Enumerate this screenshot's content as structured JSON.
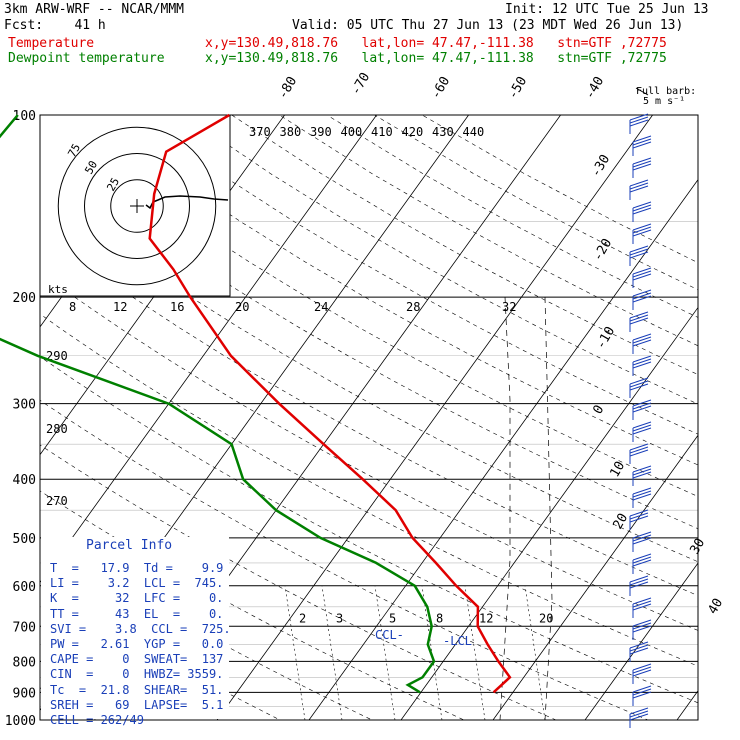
{
  "header": {
    "line1_left": "3km ARW-WRF -- NCAR/MMM",
    "line1_right": "Init: 12 UTC Tue 25 Jun 13",
    "line2_left": "Fcst:    41 h",
    "line2_right": "Valid: 05 UTC Thu 27 Jun 13 (23 MDT Wed 26 Jun 13)",
    "temp_label": "Temperature",
    "temp_info": "x,y=130.49,818.76   lat,lon= 47.47,-111.38   stn=GTF ,72775",
    "dew_label": "Dewpoint temperature",
    "dew_info": "x,y=130.49,818.76   lat,lon= 47.47,-111.38   stn=GTF ,72775"
  },
  "colors": {
    "temperature": "#e00000",
    "dewpoint": "#008000",
    "parcel": "#1a3fb8",
    "wind": "#1a3fb8"
  },
  "chart_data": {
    "type": "line",
    "title": "",
    "y_axis": {
      "label": "",
      "scale": "log",
      "ticks": [
        100,
        200,
        300,
        400,
        500,
        600,
        700,
        800,
        900,
        1000
      ],
      "range": [
        100,
        1000
      ]
    },
    "isotherm_labels": [
      "-80",
      "-70",
      "-60",
      "-50",
      "-40",
      "-30",
      "-20",
      "-10",
      "0",
      "10",
      "20",
      "30",
      "40"
    ],
    "theta_e_labels": [
      "370",
      "380",
      "390",
      "400",
      "410",
      "420",
      "430",
      "440"
    ],
    "theta_labels": [
      "290",
      "280",
      "270"
    ],
    "mixing_ratio_labels": [
      "2",
      "3",
      "5",
      "8",
      "12",
      "20"
    ],
    "hodograph": {
      "unit_label": "kts",
      "ring_labels": [
        "75",
        "50",
        "25"
      ]
    },
    "speed_scale_labels": [
      "8",
      "12",
      "16",
      "20",
      "24",
      "28",
      "32"
    ],
    "wind_key": {
      "line1": "Full barb:",
      "line2": "5 m s⁻¹"
    },
    "level_markers": {
      "ccl": "CCL",
      "lcl": "LCL"
    },
    "series": [
      {
        "name": "Temperature",
        "color": "#e00000",
        "points": [
          [
            100,
            -56
          ],
          [
            115,
            -60
          ],
          [
            135,
            -58
          ],
          [
            160,
            -55
          ],
          [
            180,
            -50
          ],
          [
            200,
            -46
          ],
          [
            250,
            -37
          ],
          [
            300,
            -28
          ],
          [
            350,
            -20
          ],
          [
            400,
            -13
          ],
          [
            450,
            -7
          ],
          [
            500,
            -3
          ],
          [
            550,
            1.5
          ],
          [
            600,
            5.5
          ],
          [
            650,
            9.5
          ],
          [
            700,
            11
          ],
          [
            750,
            13.5
          ],
          [
            800,
            16
          ],
          [
            850,
            18.5
          ],
          [
            900,
            17.9
          ]
        ]
      },
      {
        "name": "Dewpoint temperature",
        "color": "#008000",
        "points": [
          [
            100,
            -79
          ],
          [
            135,
            -80
          ],
          [
            160,
            -80
          ],
          [
            185,
            -81
          ],
          [
            200,
            -77
          ],
          [
            250,
            -58
          ],
          [
            300,
            -40
          ],
          [
            350,
            -30
          ],
          [
            400,
            -26
          ],
          [
            450,
            -20
          ],
          [
            500,
            -13
          ],
          [
            550,
            -5
          ],
          [
            600,
            1
          ],
          [
            650,
            4
          ],
          [
            700,
            6
          ],
          [
            750,
            7
          ],
          [
            800,
            9
          ],
          [
            850,
            9
          ],
          [
            875,
            8
          ],
          [
            900,
            9.9
          ]
        ]
      }
    ],
    "wind_barb_count": 28
  },
  "parcel_info": {
    "title": "Parcel Info",
    "rows": [
      "T  =   17.9  Td =    9.9",
      "LI =    3.2  LCL =  745.",
      "K  =     32  LFC =    0.",
      "TT =     43  EL  =    0.",
      "SVI =    3.8  CCL =  725.",
      "PW =   2.61  YGP =   0.0",
      "CAPE =    0  SWEAT=  137",
      "CIN  =    0  HWBZ= 3559.",
      "Tc  =  21.8  SHEAR=  51.",
      "SREH =   69  LAPSE=  5.1",
      "CELL = 262/49"
    ]
  }
}
